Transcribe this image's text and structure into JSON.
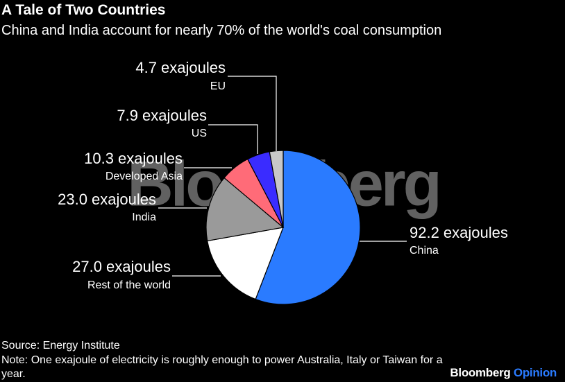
{
  "chart_data": {
    "type": "pie",
    "title": "A Tale of Two Countries",
    "subtitle": "China and India account for nearly 70% of the world's coal consumption",
    "categories": [
      "China",
      "Rest of the world",
      "India",
      "Developed Asia",
      "US",
      "EU"
    ],
    "values": [
      92.2,
      27.0,
      23.0,
      10.3,
      7.9,
      4.7
    ],
    "value_labels": [
      "92.2 exajoules",
      "27.0 exajoules",
      "23.0 exajoules",
      "10.3 exajoules",
      "7.9 exajoules",
      "4.7 exajoules"
    ],
    "colors": [
      "#2a7bff",
      "#ffffff",
      "#9a9a9a",
      "#ff6b78",
      "#3a2cff",
      "#c8c8c8"
    ],
    "watermark": "Bloomberg",
    "source": "Source: Energy Institute",
    "note": "Note: One exajoule of electricity is roughly enough to power Australia, Italy or Taiwan for a year.",
    "brand": [
      "Bloomberg",
      "Opinion"
    ]
  }
}
